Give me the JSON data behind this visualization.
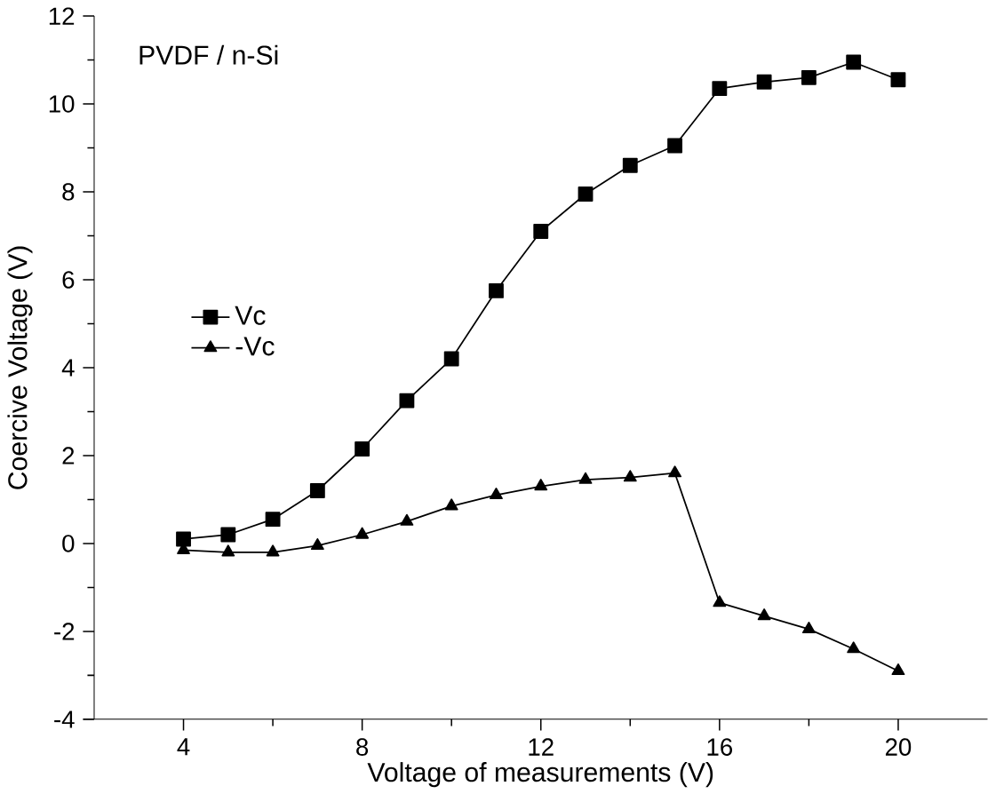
{
  "chart_data": {
    "type": "line",
    "xlabel": "Voltage of measurements (V)",
    "ylabel": "Coercive Voltage (V)",
    "annotations": [
      "PVDF / n-Si"
    ],
    "x": [
      4,
      5,
      6,
      7,
      8,
      9,
      10,
      11,
      12,
      13,
      14,
      15,
      16,
      17,
      18,
      19,
      20
    ],
    "series": [
      {
        "name": "Vc",
        "color": "#000000",
        "marker": "square",
        "values": [
          0.1,
          0.2,
          0.55,
          1.2,
          2.15,
          3.25,
          4.2,
          5.75,
          7.1,
          7.95,
          8.6,
          9.05,
          10.35,
          10.5,
          10.6,
          10.95,
          10.55
        ]
      },
      {
        "name": "-Vc",
        "color": "#000000",
        "marker": "triangle",
        "values": [
          -0.15,
          -0.2,
          -0.2,
          -0.05,
          0.2,
          0.5,
          0.85,
          1.1,
          1.3,
          1.45,
          1.5,
          1.6,
          -1.35,
          -1.65,
          -1.95,
          -2.4,
          -2.9
        ]
      }
    ],
    "xlim": [
      2,
      22
    ],
    "ylim": [
      -4,
      12
    ],
    "xticks": [
      4,
      8,
      12,
      16,
      20
    ],
    "yticks": [
      -4,
      -2,
      0,
      2,
      4,
      6,
      8,
      10,
      12
    ],
    "legend": "left",
    "grid": false,
    "line_style": "solid"
  }
}
